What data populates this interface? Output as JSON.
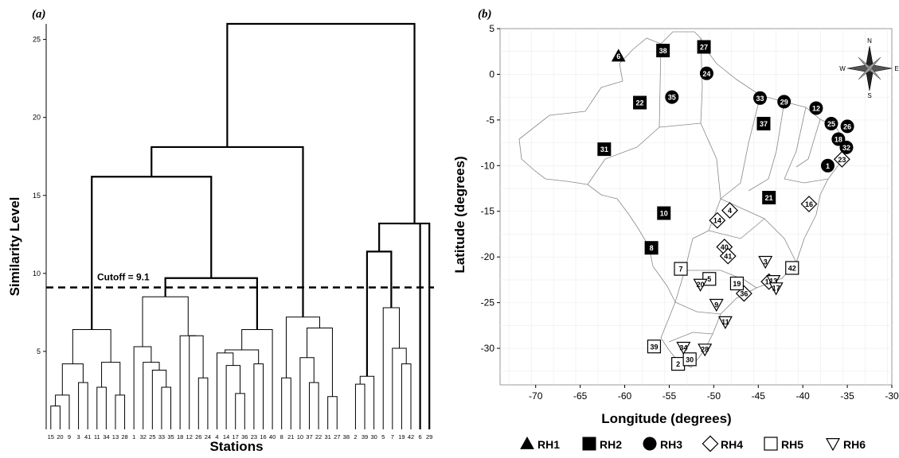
{
  "chart_data": [
    {
      "type": "dendrogram",
      "panel_label": "(a)",
      "xlabel": "Stations",
      "ylabel": "Similarity Level",
      "ylim": [
        0,
        26
      ],
      "yticks": [
        5,
        10,
        15,
        20,
        25
      ],
      "cutoff": {
        "value": 9.1,
        "label": "Cutoff = 9.1"
      },
      "leaves": [
        "15",
        "20",
        "9",
        "3",
        "41",
        "11",
        "34",
        "13",
        "28",
        "1",
        "32",
        "25",
        "33",
        "35",
        "18",
        "12",
        "26",
        "24",
        "4",
        "14",
        "17",
        "36",
        "23",
        "16",
        "40",
        "8",
        "21",
        "10",
        "37",
        "22",
        "31",
        "27",
        "38",
        "2",
        "39",
        "30",
        "5",
        "7",
        "19",
        "42",
        "6",
        "29"
      ],
      "merges": [
        [
          0,
          1,
          1.5
        ],
        [
          42,
          2,
          2.2
        ],
        [
          3,
          4,
          3.0
        ],
        [
          43,
          44,
          4.2
        ],
        [
          5,
          6,
          2.7
        ],
        [
          7,
          8,
          2.2
        ],
        [
          46,
          47,
          4.3
        ],
        [
          45,
          48,
          6.4
        ],
        [
          12,
          13,
          2.7
        ],
        [
          11,
          50,
          3.8
        ],
        [
          10,
          51,
          4.3
        ],
        [
          9,
          52,
          5.3
        ],
        [
          16,
          17,
          3.3
        ],
        [
          54,
          15,
          6.0
        ],
        [
          14,
          55,
          6.0
        ],
        [
          53,
          56,
          8.5
        ],
        [
          20,
          21,
          2.3
        ],
        [
          19,
          58,
          4.1
        ],
        [
          18,
          59,
          4.9
        ],
        [
          22,
          23,
          4.2
        ],
        [
          60,
          61,
          5.1
        ],
        [
          62,
          24,
          6.4
        ],
        [
          57,
          63,
          9.7
        ],
        [
          49,
          64,
          16.2
        ],
        [
          28,
          29,
          3.0
        ],
        [
          27,
          66,
          4.6
        ],
        [
          30,
          31,
          2.1
        ],
        [
          67,
          68,
          6.5
        ],
        [
          25,
          26,
          3.3
        ],
        [
          70,
          69,
          7.2
        ],
        [
          65,
          71,
          18.1
        ],
        [
          33,
          34,
          2.9
        ],
        [
          73,
          35,
          3.4
        ],
        [
          38,
          39,
          4.2
        ],
        [
          37,
          75,
          5.2
        ],
        [
          36,
          76,
          7.8
        ],
        [
          74,
          77,
          11.4
        ],
        [
          78,
          40,
          13.2
        ],
        [
          79,
          41,
          13.2
        ],
        [
          72,
          80,
          26.0
        ]
      ]
    },
    {
      "type": "scatter",
      "panel_label": "(b)",
      "xlabel": "Longitude (degrees)",
      "ylabel": "Latitude (degrees)",
      "xlim": [
        -74,
        -30
      ],
      "ylim": [
        -34,
        5
      ],
      "xticks": [
        -70,
        -65,
        -60,
        -55,
        -50,
        -45,
        -40,
        -35,
        -30
      ],
      "yticks": [
        5,
        0,
        -5,
        -10,
        -15,
        -20,
        -25,
        -30
      ],
      "compass": [
        "N",
        "S",
        "E",
        "W"
      ],
      "legend": [
        {
          "name": "RH1",
          "marker": "triangle-up-filled"
        },
        {
          "name": "RH2",
          "marker": "square-filled"
        },
        {
          "name": "RH3",
          "marker": "circle-filled"
        },
        {
          "name": "RH4",
          "marker": "diamond-open"
        },
        {
          "name": "RH5",
          "marker": "square-open"
        },
        {
          "name": "RH6",
          "marker": "triangle-down-open"
        }
      ],
      "points": [
        {
          "id": "6",
          "g": "RH1",
          "x": -60.7,
          "y": 2.0
        },
        {
          "id": "38",
          "g": "RH2",
          "x": -55.7,
          "y": 2.6
        },
        {
          "id": "27",
          "g": "RH2",
          "x": -51.1,
          "y": 3.0
        },
        {
          "id": "22",
          "g": "RH2",
          "x": -58.3,
          "y": -3.1
        },
        {
          "id": "31",
          "g": "RH2",
          "x": -62.3,
          "y": -8.2
        },
        {
          "id": "37",
          "g": "RH2",
          "x": -44.4,
          "y": -5.4
        },
        {
          "id": "21",
          "g": "RH2",
          "x": -43.8,
          "y": -13.5
        },
        {
          "id": "10",
          "g": "RH2",
          "x": -55.6,
          "y": -15.2
        },
        {
          "id": "8",
          "g": "RH2",
          "x": -57.0,
          "y": -19.0
        },
        {
          "id": "24",
          "g": "RH3",
          "x": -50.8,
          "y": 0.1
        },
        {
          "id": "35",
          "g": "RH3",
          "x": -54.7,
          "y": -2.5
        },
        {
          "id": "33",
          "g": "RH3",
          "x": -44.8,
          "y": -2.6
        },
        {
          "id": "29",
          "g": "RH3",
          "x": -42.1,
          "y": -3.0
        },
        {
          "id": "12",
          "g": "RH3",
          "x": -38.5,
          "y": -3.7
        },
        {
          "id": "25",
          "g": "RH3",
          "x": -36.8,
          "y": -5.4
        },
        {
          "id": "26",
          "g": "RH3",
          "x": -35.0,
          "y": -5.7
        },
        {
          "id": "18",
          "g": "RH3",
          "x": -36.0,
          "y": -7.1
        },
        {
          "id": "32",
          "g": "RH3",
          "x": -35.1,
          "y": -8.0
        },
        {
          "id": "1",
          "g": "RH3",
          "x": -37.2,
          "y": -10.0
        },
        {
          "id": "23",
          "g": "RH4",
          "x": -35.6,
          "y": -9.3
        },
        {
          "id": "16",
          "g": "RH4",
          "x": -39.3,
          "y": -14.2
        },
        {
          "id": "4",
          "g": "RH4",
          "x": -48.2,
          "y": -14.9
        },
        {
          "id": "14",
          "g": "RH4",
          "x": -49.6,
          "y": -16.0
        },
        {
          "id": "40",
          "g": "RH4",
          "x": -48.8,
          "y": -18.9
        },
        {
          "id": "41",
          "g": "RH4",
          "x": -48.4,
          "y": -19.9
        },
        {
          "id": "36",
          "g": "RH4",
          "x": -46.6,
          "y": -24.0
        },
        {
          "id": "15",
          "g": "RH4",
          "x": -43.8,
          "y": -22.7
        },
        {
          "id": "42",
          "g": "RH5",
          "x": -41.2,
          "y": -21.2
        },
        {
          "id": "7",
          "g": "RH5",
          "x": -53.7,
          "y": -21.3
        },
        {
          "id": "5",
          "g": "RH5",
          "x": -50.5,
          "y": -22.4
        },
        {
          "id": "19",
          "g": "RH5",
          "x": -47.4,
          "y": -22.9
        },
        {
          "id": "39",
          "g": "RH5",
          "x": -56.7,
          "y": -29.8
        },
        {
          "id": "2",
          "g": "RH5",
          "x": -54.0,
          "y": -31.7
        },
        {
          "id": "30",
          "g": "RH5",
          "x": -52.7,
          "y": -31.2
        },
        {
          "id": "3",
          "g": "RH6",
          "x": -44.2,
          "y": -20.5
        },
        {
          "id": "13",
          "g": "RH6",
          "x": -43.3,
          "y": -22.6
        },
        {
          "id": "17",
          "g": "RH6",
          "x": -43.0,
          "y": -23.4
        },
        {
          "id": "20",
          "g": "RH6",
          "x": -51.5,
          "y": -23.0
        },
        {
          "id": "9",
          "g": "RH6",
          "x": -49.7,
          "y": -25.2
        },
        {
          "id": "11",
          "g": "RH6",
          "x": -48.7,
          "y": -27.1
        },
        {
          "id": "34",
          "g": "RH6",
          "x": -53.4,
          "y": -29.9
        },
        {
          "id": "28",
          "g": "RH6",
          "x": -51.0,
          "y": -30.1
        }
      ]
    }
  ]
}
